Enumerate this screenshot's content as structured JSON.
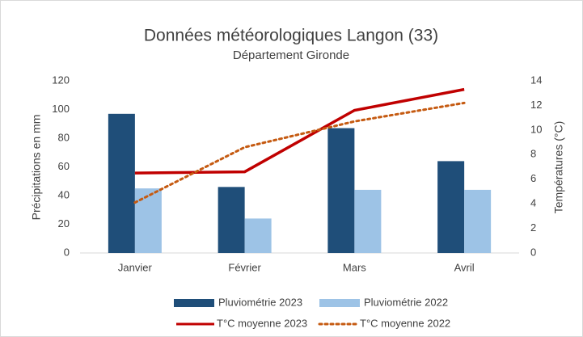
{
  "chart_data": {
    "type": "bar",
    "title": "Données météorologiques Langon (33)",
    "subtitle": "Département Gironde",
    "y_label": "Précipitations en mm",
    "y2_label": "Températures (°C)",
    "categories": [
      "Janvier",
      "Février",
      "Mars",
      "Avril"
    ],
    "series": [
      {
        "name": "Pluviométrie 2023",
        "type": "bar",
        "color": "#1f4e79",
        "values": [
          97,
          46,
          87,
          64
        ]
      },
      {
        "name": "Pluviométrie 2022",
        "type": "bar",
        "color": "#9dc3e6",
        "values": [
          45,
          24,
          44,
          44
        ]
      },
      {
        "name": "T°C moyenne 2023",
        "type": "line",
        "axis": "y2",
        "color": "#c00000",
        "values": [
          6.5,
          6.6,
          11.6,
          13.3
        ]
      },
      {
        "name": "T°C moyenne 2022",
        "type": "line",
        "axis": "y2",
        "dash": "dotted",
        "color": "#c55a11",
        "values": [
          4.1,
          8.6,
          10.7,
          12.2
        ]
      }
    ],
    "ylim": [
      0,
      120
    ],
    "yticks": [
      0,
      20,
      40,
      60,
      80,
      100,
      120
    ],
    "y2lim": [
      0,
      14
    ],
    "y2ticks": [
      0,
      2,
      4,
      6,
      8,
      10,
      12,
      14
    ],
    "grid": false,
    "legend": "bottom"
  }
}
